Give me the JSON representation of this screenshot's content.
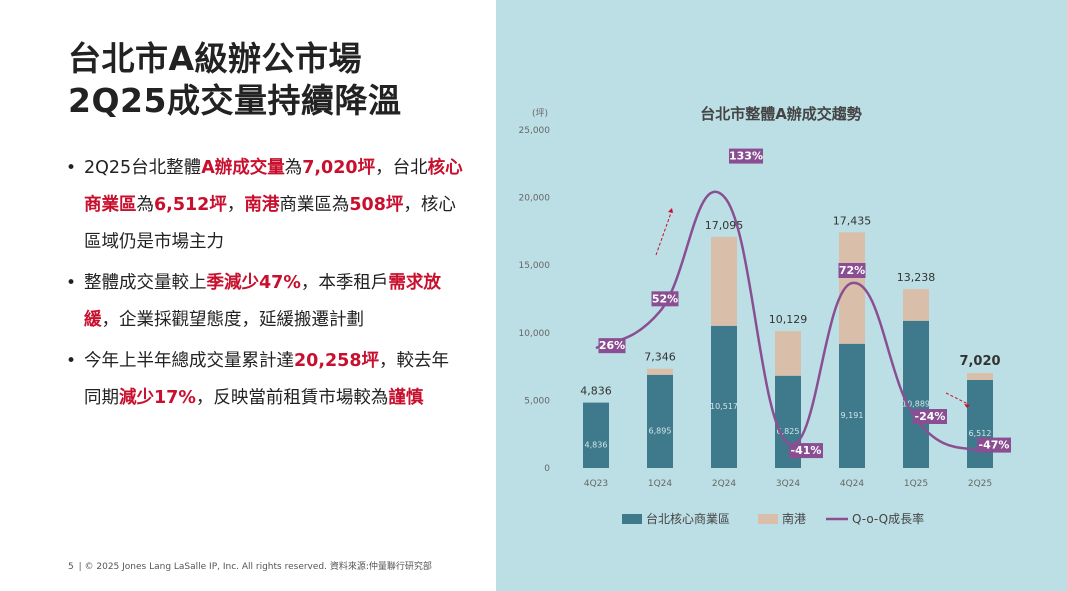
{
  "slide": {
    "title_line1": "台北市A級辦公市場",
    "title_line2": "2Q25成交量持續降溫",
    "bullets": [
      [
        {
          "t": "2Q25台北整體",
          "h": false
        },
        {
          "t": "A辦成交量",
          "h": true
        },
        {
          "t": "為",
          "h": false
        },
        {
          "t": "7,020坪",
          "h": true
        },
        {
          "t": "，台北",
          "h": false
        },
        {
          "t": "核心商業區",
          "h": true
        },
        {
          "t": "為",
          "h": false
        },
        {
          "t": "6,512坪",
          "h": true
        },
        {
          "t": "，",
          "h": false
        },
        {
          "t": "南港",
          "h": true
        },
        {
          "t": "商業區為",
          "h": false
        },
        {
          "t": "508坪",
          "h": true
        },
        {
          "t": "，核心區域仍是市場主力",
          "h": false
        }
      ],
      [
        {
          "t": "整體成交量較上",
          "h": false
        },
        {
          "t": "季減少47%",
          "h": true
        },
        {
          "t": "，本季租戶",
          "h": false
        },
        {
          "t": "需求放緩",
          "h": true
        },
        {
          "t": "，企業採觀望態度，延緩搬遷計劃",
          "h": false
        }
      ],
      [
        {
          "t": "今年上半年總成交量累計達",
          "h": false
        },
        {
          "t": "20,258坪",
          "h": true
        },
        {
          "t": "，較去年同期",
          "h": false
        },
        {
          "t": "減少17%",
          "h": true
        },
        {
          "t": "，反映當前租賃市場較為",
          "h": false
        },
        {
          "t": "謹慎",
          "h": true
        }
      ]
    ],
    "footer_page": "5",
    "footer_text": "| © 2025 Jones Lang LaSalle IP, Inc. All rights reserved.   資料來源:仲量聯行研究部"
  },
  "colors": {
    "core": "#3f7a8c",
    "nangang": "#d9bfa9",
    "line": "#8a4f93",
    "label_bg": "#8a4f93",
    "panel_bg": "#bcdfe5",
    "highlight": "#c8102e"
  },
  "chart_data": {
    "type": "bar",
    "title": "台北市整體A辦成交趨勢",
    "ylabel": "(坪)",
    "ylim": [
      0,
      25000
    ],
    "yticks": [
      0,
      5000,
      10000,
      15000,
      20000,
      25000
    ],
    "ytick_labels": [
      "0",
      "5,000",
      "10,000",
      "15,000",
      "20,000",
      "25,000"
    ],
    "categories": [
      "4Q23",
      "1Q24",
      "2Q24",
      "3Q24",
      "4Q24",
      "1Q25",
      "2Q25"
    ],
    "stacked": true,
    "series": [
      {
        "name": "台北核心商業區",
        "values": [
          4836,
          6895,
          10517,
          6825,
          9191,
          10889,
          6512
        ]
      },
      {
        "name": "南港",
        "values": [
          0,
          451,
          6578,
          3304,
          8244,
          2349,
          508
        ]
      }
    ],
    "totals": [
      4836,
      7346,
      17095,
      10129,
      17435,
      13238,
      7020
    ],
    "total_labels": [
      "4,836",
      "7,346",
      "17,095",
      "10,129",
      "17,435",
      "13,238",
      "7,020"
    ],
    "inner_labels": [
      "4,836",
      "6,895",
      "10,517",
      "6,825",
      "9,191",
      "10,889",
      "6,512"
    ],
    "line_series": {
      "name": "Q-o-Q成長率",
      "values": [
        26,
        52,
        133,
        -41,
        72,
        -24,
        -47
      ],
      "labels": [
        "26%",
        "52%",
        "133%",
        "-41%",
        "72%",
        "-24%",
        "-47%"
      ]
    },
    "legend": [
      "台北核心商業區",
      "南港",
      "Q-o-Q成長率"
    ],
    "legend_position": "bottom",
    "grid": false
  }
}
